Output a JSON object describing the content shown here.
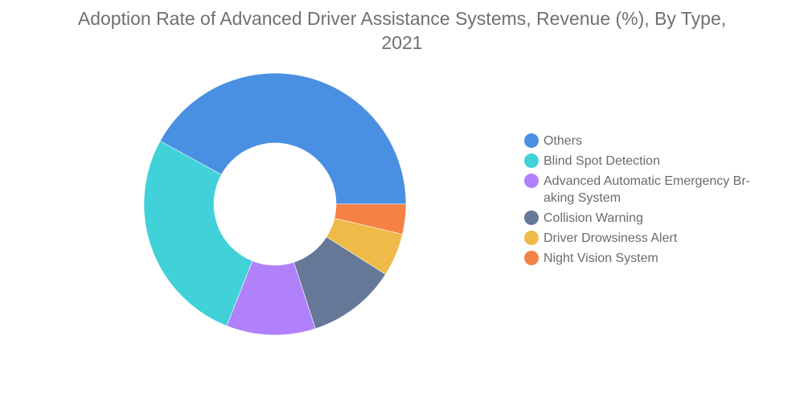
{
  "chart_data": {
    "type": "pie",
    "style": "donut",
    "title_lines": [
      "Adoption Rate of Advanced Driver Assistance Systems, Revenue (%), By Type,",
      "2021"
    ],
    "legend_position": "right",
    "slices": [
      {
        "label": "Others",
        "legend_lines": [
          "Others"
        ],
        "value": 42,
        "color": "#4a90e2"
      },
      {
        "label": "Blind Spot Detection",
        "legend_lines": [
          "Blind Spot Detection"
        ],
        "value": 27,
        "color": "#40d1d9"
      },
      {
        "label": "Advanced Automatic Emergency Braking System",
        "legend_lines": [
          "Advanced Automatic Emergency Br-",
          "aking System"
        ],
        "value": 11,
        "color": "#b081fb"
      },
      {
        "label": "Collision Warning",
        "legend_lines": [
          "Collision Warning"
        ],
        "value": 11,
        "color": "#667898"
      },
      {
        "label": "Driver Drowsiness Alert",
        "legend_lines": [
          "Driver Drowsiness Alert"
        ],
        "value": 5.3,
        "color": "#eeba48"
      },
      {
        "label": "Night Vision System",
        "legend_lines": [
          "Night Vision System"
        ],
        "value": 3.7,
        "color": "#f58144"
      }
    ]
  }
}
